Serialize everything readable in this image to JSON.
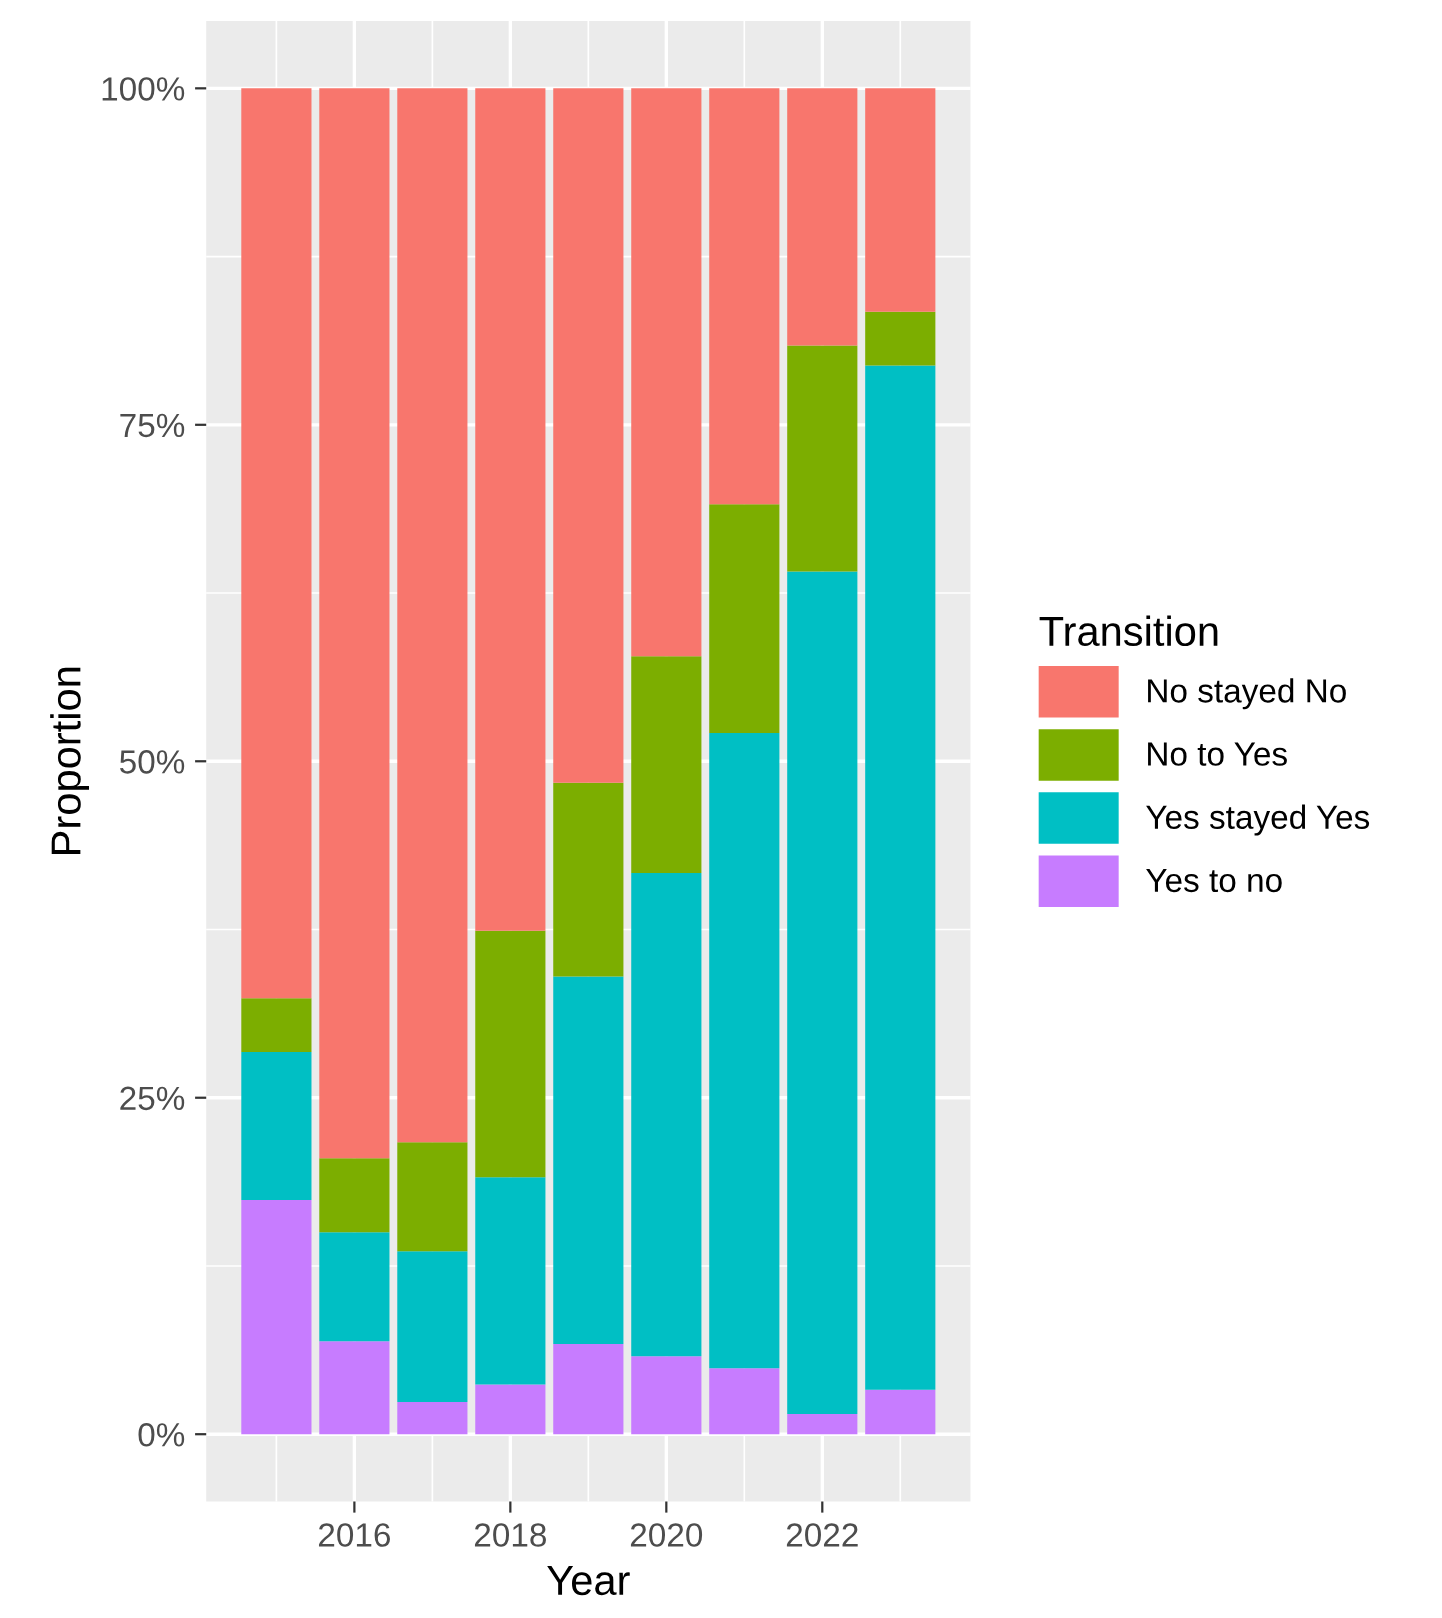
{
  "chart_data": {
    "type": "bar",
    "stacked": true,
    "xlabel": "Year",
    "ylabel": "Proportion",
    "legend_title": "Transition",
    "legend": "right",
    "x": [
      2015,
      2016,
      2017,
      2018,
      2019,
      2020,
      2021,
      2022,
      2023
    ],
    "series": [
      {
        "name": "Yes to no",
        "color": "#c77cff",
        "values": [
          17.4,
          6.9,
          2.4,
          3.7,
          6.7,
          5.8,
          4.9,
          1.5,
          3.3
        ]
      },
      {
        "name": "Yes stayed Yes",
        "color": "#00bfc4",
        "values": [
          11.0,
          8.1,
          11.2,
          15.4,
          27.3,
          35.9,
          47.2,
          62.6,
          76.1
        ]
      },
      {
        "name": "No to Yes",
        "color": "#7cae00",
        "values": [
          4.0,
          5.5,
          8.1,
          18.3,
          14.4,
          16.1,
          17.0,
          16.8,
          4.0
        ]
      },
      {
        "name": "No stayed No",
        "color": "#f8766d",
        "values": [
          67.6,
          79.5,
          78.3,
          62.6,
          51.6,
          42.2,
          30.9,
          19.1,
          16.6
        ]
      }
    ],
    "xlim": [
      2014.1,
      2023.9
    ],
    "xticks": [
      2016,
      2018,
      2020,
      2022
    ],
    "ylim": [
      -5,
      105
    ],
    "yticks": [
      {
        "value": 0,
        "label": "0%"
      },
      {
        "value": 25,
        "label": "25%"
      },
      {
        "value": 50,
        "label": "50%"
      },
      {
        "value": 75,
        "label": "75%"
      },
      {
        "value": 100,
        "label": "100%"
      }
    ],
    "grid": true
  }
}
